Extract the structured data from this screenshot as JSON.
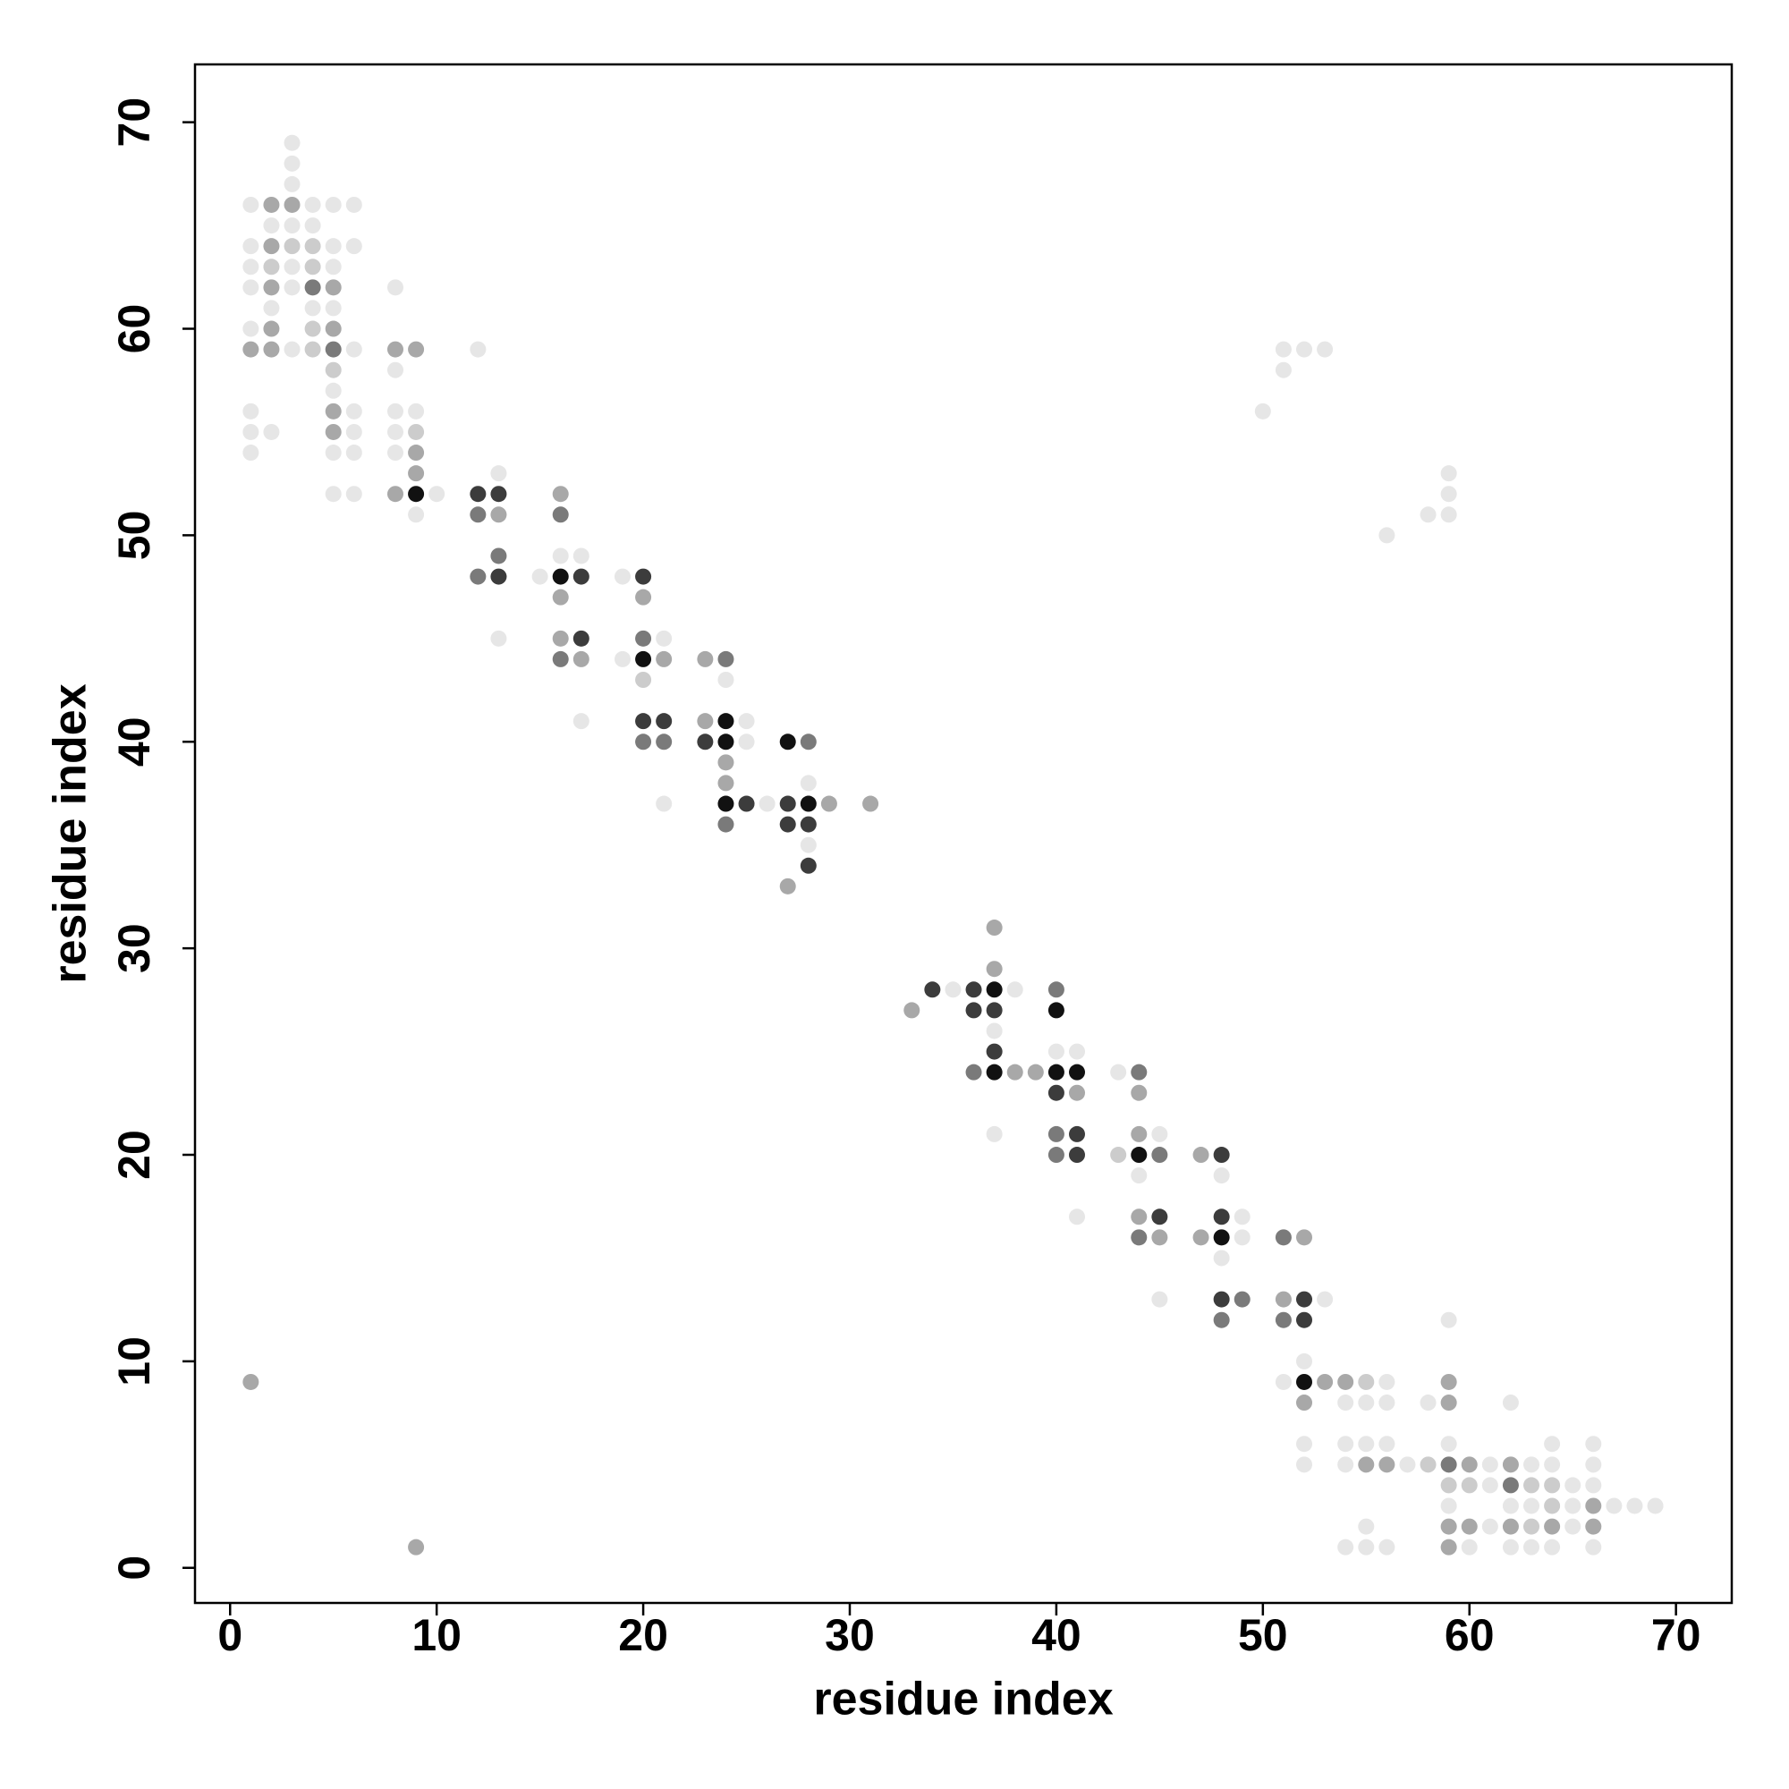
{
  "chart_data": {
    "type": "scatter",
    "xlabel": "residue index",
    "ylabel": "residue index",
    "xlim": [
      -1.7,
      72.7
    ],
    "ylim": [
      -1.7,
      72.8
    ],
    "xticks": [
      0,
      10,
      20,
      30,
      40,
      50,
      60,
      70
    ],
    "yticks": [
      0,
      10,
      20,
      30,
      40,
      50,
      60,
      70
    ],
    "series": [
      {
        "color": "#e6e6e6",
        "x": [
          3,
          3,
          3,
          1,
          4,
          5,
          6,
          2,
          3,
          4,
          1,
          5,
          6,
          1,
          3,
          5,
          1,
          3,
          8,
          2,
          4,
          5,
          1,
          3,
          6,
          12,
          8,
          5,
          1,
          6,
          8,
          9,
          1,
          2,
          6,
          8,
          1,
          5,
          6,
          8,
          13,
          5,
          6,
          10,
          9,
          16,
          17,
          15,
          19,
          13,
          21,
          19,
          24,
          17,
          25,
          25,
          21,
          26,
          28,
          28,
          50,
          51,
          51,
          52,
          53,
          69,
          68,
          67,
          66,
          66,
          66,
          66,
          65,
          65,
          65,
          64,
          64,
          64,
          63,
          63,
          63,
          62,
          62,
          62,
          61,
          61,
          61,
          60,
          59,
          59,
          59,
          58,
          57,
          56,
          56,
          56,
          56,
          55,
          55,
          55,
          55,
          54,
          54,
          54,
          54,
          53,
          52,
          52,
          52,
          51,
          49,
          49,
          48,
          48,
          45,
          45,
          44,
          43,
          41,
          41,
          40,
          37,
          37,
          38,
          35,
          56,
          58,
          59,
          59,
          59
        ],
        "y": [
          69,
          68,
          67,
          66,
          66,
          66,
          66,
          65,
          65,
          65,
          64,
          64,
          64,
          63,
          63,
          63,
          62,
          62,
          62,
          61,
          61,
          61,
          60,
          59,
          59,
          59,
          58,
          57,
          56,
          56,
          56,
          56,
          55,
          55,
          55,
          55,
          54,
          54,
          54,
          54,
          53,
          52,
          52,
          52,
          51,
          49,
          49,
          48,
          48,
          45,
          45,
          44,
          43,
          41,
          41,
          40,
          37,
          37,
          38,
          35,
          56,
          58,
          59,
          59,
          59,
          3,
          3,
          3,
          1,
          4,
          5,
          6,
          2,
          3,
          4,
          1,
          5,
          6,
          1,
          3,
          5,
          1,
          3,
          8,
          2,
          4,
          5,
          1,
          3,
          6,
          12,
          8,
          5,
          1,
          6,
          8,
          9,
          1,
          2,
          6,
          8,
          1,
          5,
          6,
          8,
          13,
          5,
          6,
          10,
          9,
          16,
          17,
          15,
          19,
          13,
          21,
          19,
          24,
          17,
          25,
          25,
          21,
          26,
          28,
          28,
          50,
          51,
          51,
          52,
          53
        ]
      },
      {
        "color": "#cccccc",
        "x": [
          3,
          4,
          2,
          4,
          4,
          4,
          5,
          9,
          20,
          64,
          64,
          63,
          63,
          60,
          59,
          58,
          55,
          43
        ],
        "y": [
          64,
          64,
          63,
          63,
          60,
          59,
          58,
          55,
          43,
          3,
          4,
          2,
          4,
          4,
          4,
          5,
          9,
          20
        ]
      },
      {
        "color": "#a8a8a8",
        "x": [
          2,
          3,
          2,
          2,
          5,
          2,
          5,
          1,
          2,
          8,
          9,
          5,
          5,
          9,
          9,
          8,
          13,
          16,
          16,
          17,
          21,
          20,
          16,
          23,
          23,
          24,
          24,
          29,
          31,
          27,
          1,
          66,
          66,
          64,
          62,
          62,
          60,
          60,
          59,
          59,
          59,
          59,
          56,
          55,
          54,
          53,
          52,
          51,
          52,
          45,
          44,
          44,
          47,
          47,
          44,
          41,
          39,
          38,
          37,
          37,
          33,
          9
        ],
        "y": [
          66,
          66,
          64,
          62,
          62,
          60,
          60,
          59,
          59,
          59,
          59,
          56,
          55,
          54,
          53,
          52,
          51,
          52,
          45,
          44,
          44,
          47,
          47,
          44,
          41,
          39,
          38,
          37,
          37,
          33,
          9,
          2,
          3,
          2,
          2,
          5,
          2,
          5,
          1,
          2,
          8,
          9,
          5,
          5,
          9,
          9,
          8,
          13,
          16,
          16,
          17,
          21,
          20,
          16,
          23,
          23,
          24,
          24,
          29,
          31,
          27,
          1
        ]
      },
      {
        "color": "#7a7a7a",
        "x": [
          4,
          5,
          12,
          16,
          13,
          12,
          20,
          16,
          24,
          20,
          21,
          28,
          24,
          62,
          59,
          51,
          51,
          49,
          48,
          45,
          44,
          44,
          40,
          40,
          40,
          36
        ],
        "y": [
          62,
          59,
          51,
          51,
          49,
          48,
          45,
          44,
          44,
          40,
          40,
          40,
          36,
          4,
          5,
          12,
          16,
          13,
          12,
          20,
          16,
          24,
          20,
          21,
          28,
          24
        ]
      },
      {
        "color": "#3c3c3c",
        "x": [
          12,
          13,
          13,
          17,
          20,
          17,
          20,
          21,
          23,
          25,
          27,
          27,
          28,
          28,
          52,
          52,
          48,
          48,
          48,
          45,
          41,
          41,
          40,
          37,
          37,
          36,
          36,
          34
        ],
        "y": [
          52,
          52,
          48,
          48,
          48,
          45,
          41,
          41,
          40,
          37,
          37,
          36,
          36,
          34,
          12,
          13,
          13,
          17,
          20,
          17,
          20,
          21,
          23,
          25,
          27,
          27,
          28,
          28
        ]
      },
      {
        "color": "#111111",
        "x": [
          9,
          16,
          20,
          24,
          24,
          27,
          24,
          28,
          52,
          48,
          44,
          41,
          40,
          40,
          37,
          37
        ],
        "y": [
          52,
          48,
          44,
          41,
          40,
          40,
          37,
          37,
          9,
          16,
          20,
          24,
          24,
          27,
          24,
          28
        ]
      }
    ]
  }
}
